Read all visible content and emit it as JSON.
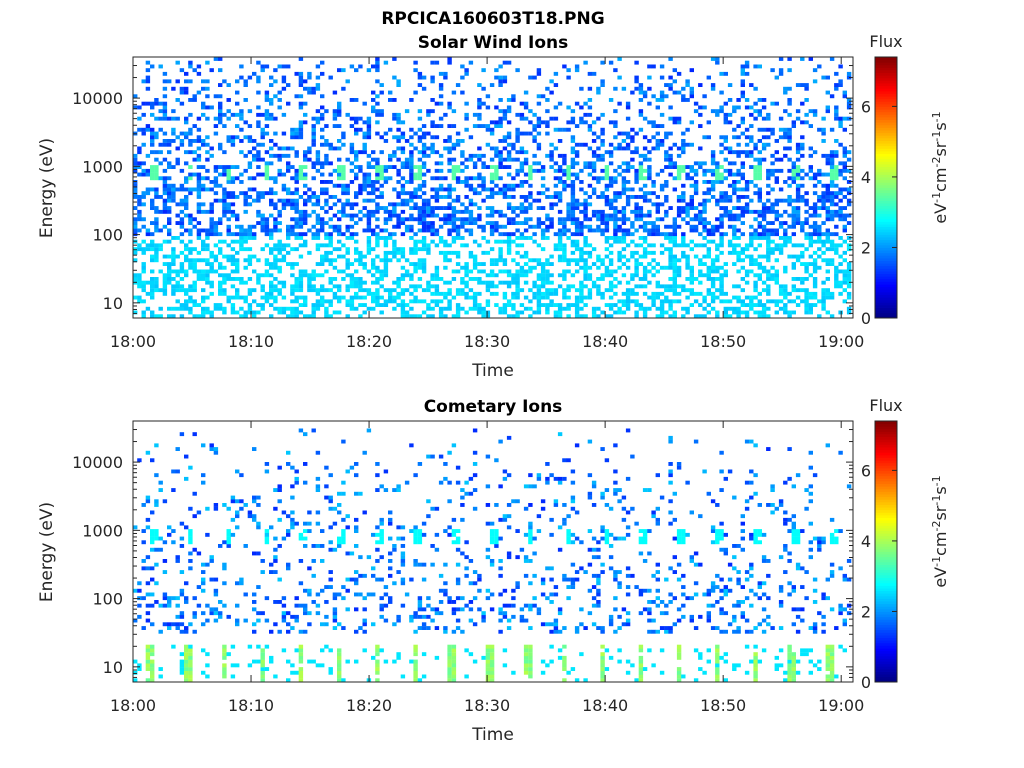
{
  "figure_title": "RPCICA160603T18.PNG",
  "colorbar": {
    "label": "Flux",
    "unit_base": [
      "eV",
      "cm",
      "sr",
      "s"
    ],
    "unit_exp": [
      "-1",
      "-2",
      "-1",
      "-1"
    ],
    "ticks": [
      0,
      2,
      4,
      6
    ],
    "range": [
      0,
      7.4
    ],
    "colormap": "jet"
  },
  "chart_data": [
    {
      "type": "heatmap",
      "title": "Solar Wind Ions",
      "xlabel": "Time",
      "ylabel": "Energy (eV)",
      "x_ticks": [
        "18:00",
        "18:10",
        "18:20",
        "18:30",
        "18:40",
        "18:50",
        "19:00"
      ],
      "x_range_minutes": [
        0,
        61
      ],
      "y_scale": "log",
      "y_ticks": [
        10,
        100,
        1000,
        10000
      ],
      "y_tick_labels": [
        "10",
        "100",
        "1000",
        "10000"
      ],
      "y_range": [
        6,
        40000
      ],
      "value_range": [
        0,
        7.4
      ],
      "features": [
        {
          "name": "low_energy_band",
          "energy_min": 6,
          "energy_max": 100,
          "flux": 2.5
        },
        {
          "name": "scattered_background",
          "energy_min": 100,
          "energy_max": 40000,
          "flux_min": 1.2,
          "flux_max": 2.2
        },
        {
          "name": "periodic_peaks",
          "energy": 800,
          "flux": 3.4,
          "period_minutes": 3.2,
          "first_minute": 1.2
        }
      ]
    },
    {
      "type": "heatmap",
      "title": "Cometary Ions",
      "xlabel": "Time",
      "ylabel": "Energy (eV)",
      "x_ticks": [
        "18:00",
        "18:10",
        "18:20",
        "18:30",
        "18:40",
        "18:50",
        "19:00"
      ],
      "x_range_minutes": [
        0,
        61
      ],
      "y_scale": "log",
      "y_ticks": [
        10,
        100,
        1000,
        10000
      ],
      "y_tick_labels": [
        "10",
        "100",
        "1000",
        "10000"
      ],
      "y_range": [
        6,
        40000
      ],
      "value_range": [
        0,
        7.4
      ],
      "features": [
        {
          "name": "low_energy_bursts",
          "energy_min": 6,
          "energy_max": 20,
          "flux": 3.8,
          "period_minutes": 3.2
        },
        {
          "name": "sparse_background",
          "energy_min": 30,
          "energy_max": 30000,
          "flux_min": 1.2,
          "flux_max": 2.4
        },
        {
          "name": "periodic_peaks",
          "energy": 800,
          "flux": 2.8,
          "period_minutes": 3.2,
          "first_minute": 1.2
        }
      ]
    }
  ]
}
